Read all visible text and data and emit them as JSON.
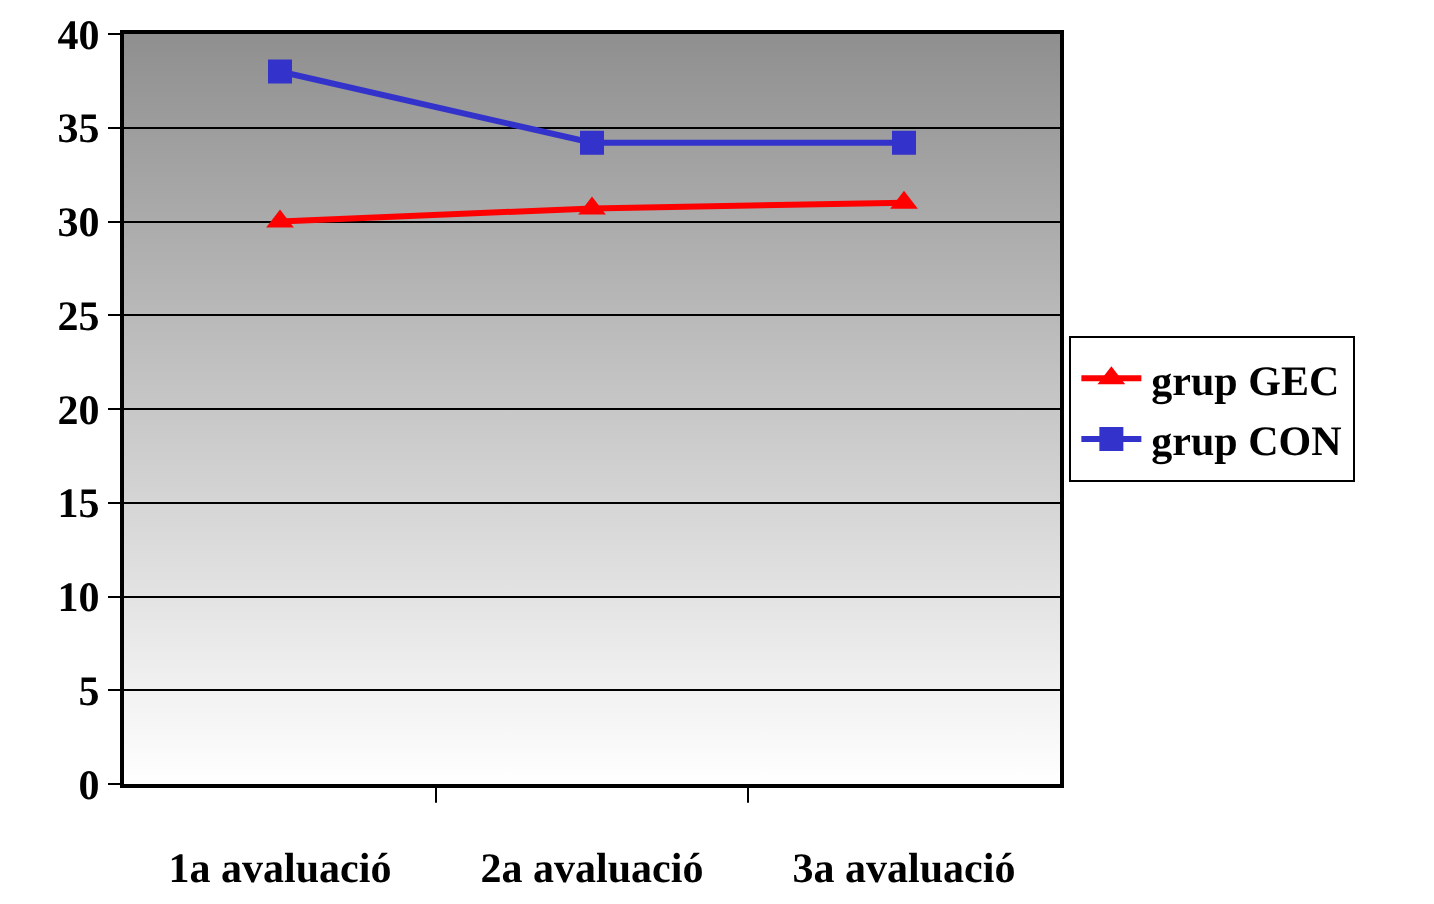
{
  "chart_data": {
    "type": "line",
    "categories": [
      "1a avaluació",
      "2a avaluació",
      "3a avaluació"
    ],
    "series": [
      {
        "name": "grup GEC",
        "color": "#ff0000",
        "marker": "triangle",
        "values": [
          30,
          30.7,
          31
        ]
      },
      {
        "name": "grup CON",
        "color": "#3333cc",
        "marker": "square",
        "values": [
          38,
          34.2,
          34.2
        ]
      }
    ],
    "ylim": [
      0,
      40
    ],
    "yticks": [
      0,
      5,
      10,
      15,
      20,
      25,
      30,
      35,
      40
    ],
    "grid": "y",
    "legend": "right"
  }
}
